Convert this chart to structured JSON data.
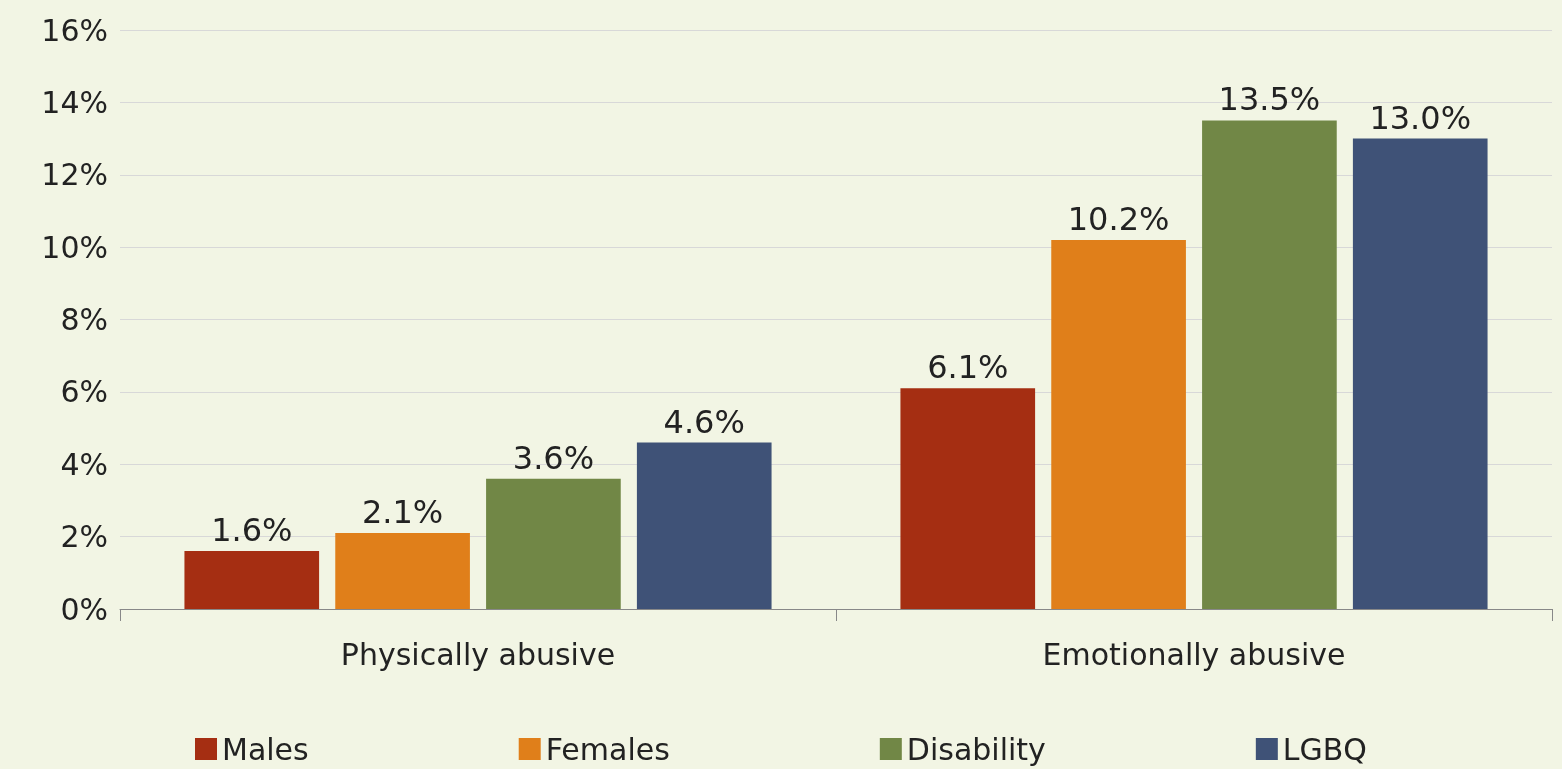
{
  "chart_data": {
    "type": "bar",
    "categories": [
      "Physically abusive",
      "Emotionally abusive"
    ],
    "series": [
      {
        "name": "Males",
        "color": "#a52e12",
        "values": [
          1.6,
          6.1
        ],
        "value_labels": [
          "1.6%",
          "6.1%"
        ]
      },
      {
        "name": "Females",
        "color": "#e07f1a",
        "values": [
          2.1,
          10.2
        ],
        "value_labels": [
          "2.1%",
          "10.2%"
        ]
      },
      {
        "name": "Disability",
        "color": "#718746",
        "values": [
          3.6,
          13.5
        ],
        "value_labels": [
          "3.6%",
          "13.5%"
        ]
      },
      {
        "name": "LGBQ",
        "color": "#3f5277",
        "values": [
          4.6,
          13.0
        ],
        "value_labels": [
          "4.6%",
          "13.0%"
        ]
      }
    ],
    "ylim": [
      0,
      16
    ],
    "yticks": [
      {
        "value": 0,
        "label": "0%"
      },
      {
        "value": 2,
        "label": "2%"
      },
      {
        "value": 4,
        "label": "4%"
      },
      {
        "value": 6,
        "label": "6%"
      },
      {
        "value": 8,
        "label": "8%"
      },
      {
        "value": 10,
        "label": "10%"
      },
      {
        "value": 12,
        "label": "12%"
      },
      {
        "value": 14,
        "label": "14%"
      },
      {
        "value": 16,
        "label": "16%"
      }
    ],
    "grid": "y",
    "legend": "bottom"
  }
}
